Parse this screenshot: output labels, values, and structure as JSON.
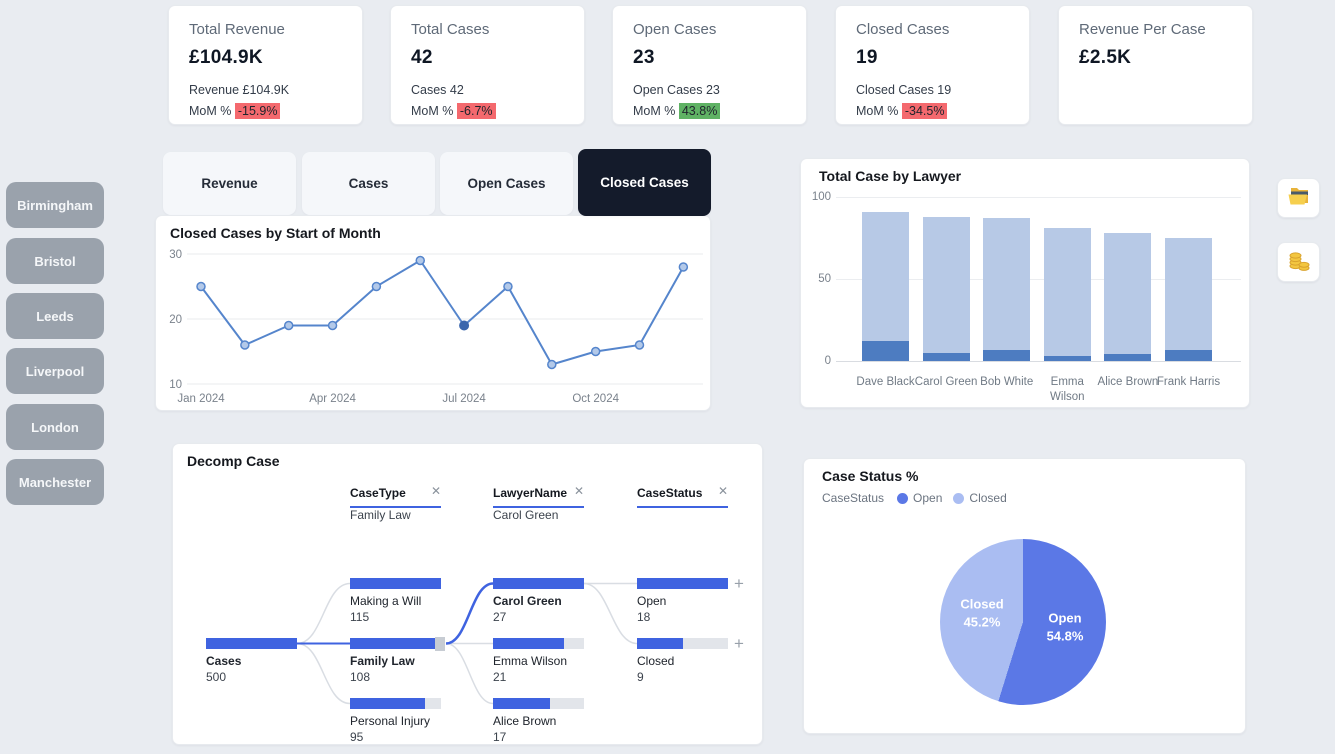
{
  "kpi_cards": [
    {
      "title": "Total Revenue",
      "value": "£104.9K",
      "detail": "Revenue £104.9K",
      "mom_label": "MoM %",
      "mom_value": "-15.9%",
      "mom_type": "negative"
    },
    {
      "title": "Total Cases",
      "value": "42",
      "detail": "Cases 42",
      "mom_label": "MoM %",
      "mom_value": "-6.7%",
      "mom_type": "negative"
    },
    {
      "title": "Open Cases",
      "value": "23",
      "detail": "Open Cases 23",
      "mom_label": "MoM %",
      "mom_value": "43.8%",
      "mom_type": "positive"
    },
    {
      "title": "Closed Cases",
      "value": "19",
      "detail": "Closed Cases 19",
      "mom_label": "MoM %",
      "mom_value": "-34.5%",
      "mom_type": "negative"
    },
    {
      "title": "Revenue Per Case",
      "value": "£2.5K",
      "detail": "",
      "mom_label": "",
      "mom_value": "",
      "mom_type": "none"
    }
  ],
  "city_slicers": [
    "Birmingham",
    "Bristol",
    "Leeds",
    "Liverpool",
    "London",
    "Manchester"
  ],
  "tabs": [
    {
      "label": "Revenue",
      "active": false
    },
    {
      "label": "Cases",
      "active": false
    },
    {
      "label": "Open Cases",
      "active": false
    },
    {
      "label": "Closed Cases",
      "active": true
    }
  ],
  "icons": {
    "remove_level": "✕",
    "expand": "+",
    "toolbar": [
      "open-folder-icon",
      "coins-icon"
    ]
  },
  "colors": {
    "background": "#e9ecf1",
    "active_tab": "#141b2b",
    "city_button": "#9aa2ac",
    "badge_negative": "#f4696e",
    "badge_positive": "#5fb264",
    "line": "#5585cc",
    "line_point_fill": "#b3c9e9",
    "line_point_selected": "#3a66ad",
    "bar_total": "#b7c9e6",
    "bar_highlight": "#4d7cc1",
    "decomp_bar": "#3f63e0",
    "pie_open": "#5b78e6",
    "pie_closed": "#aabdf2"
  },
  "chart_data": [
    {
      "type": "line",
      "title": "Closed Cases by Start of Month",
      "x": [
        "Jan 2024",
        "Feb 2024",
        "Mar 2024",
        "Apr 2024",
        "May 2024",
        "Jun 2024",
        "Jul 2024",
        "Aug 2024",
        "Sep 2024",
        "Oct 2024",
        "Nov 2024",
        "Dec 2024"
      ],
      "values": [
        25,
        16,
        19,
        19,
        25,
        29,
        19,
        25,
        13,
        15,
        16,
        28
      ],
      "ylim": [
        10,
        30
      ],
      "yticks": [
        10,
        20,
        30
      ],
      "xticks": [
        "Jan 2024",
        "Apr 2024",
        "Jul 2024",
        "Oct 2024"
      ],
      "selected_index": 6,
      "grid": "horizontal"
    },
    {
      "type": "bar",
      "title": "Total Case by Lawyer",
      "categories": [
        "Dave Black",
        "Carol Green",
        "Bob White",
        "Emma Wilson",
        "Alice Brown",
        "Frank Harris"
      ],
      "series": [
        {
          "name": "total-cases",
          "values": [
            91,
            88,
            87,
            81,
            78,
            75
          ]
        },
        {
          "name": "highlighted-cases",
          "values": [
            12,
            5,
            7,
            3,
            4,
            7
          ]
        }
      ],
      "ylim": [
        0,
        100
      ],
      "yticks": [
        0,
        50,
        100
      ],
      "grid": "horizontal"
    },
    {
      "type": "pie",
      "title": "Case Status %",
      "legend_label": "CaseStatus",
      "slices": [
        {
          "label": "Open",
          "pct": 54.8,
          "color": "#5b78e6"
        },
        {
          "label": "Closed",
          "pct": 45.2,
          "color": "#aabdf2"
        }
      ],
      "legend_position": "top"
    },
    {
      "type": "tree",
      "title": "Decomp Case",
      "levels": [
        {
          "field": "CaseType",
          "selected": "Family Law"
        },
        {
          "field": "LawyerName",
          "selected": "Carol Green"
        },
        {
          "field": "CaseStatus",
          "selected": ""
        }
      ],
      "root": {
        "name": "Cases",
        "value": 500
      },
      "case_types": [
        {
          "name": "Making a Will",
          "value": 115,
          "selected": false
        },
        {
          "name": "Family Law",
          "value": 108,
          "selected": true
        },
        {
          "name": "Personal Injury",
          "value": 95,
          "selected": false
        }
      ],
      "lawyers": [
        {
          "name": "Carol Green",
          "value": 27,
          "selected": true
        },
        {
          "name": "Emma Wilson",
          "value": 21,
          "selected": false
        },
        {
          "name": "Alice Brown",
          "value": 17,
          "selected": false
        }
      ],
      "statuses": [
        {
          "name": "Open",
          "value": 18
        },
        {
          "name": "Closed",
          "value": 9
        }
      ]
    }
  ]
}
